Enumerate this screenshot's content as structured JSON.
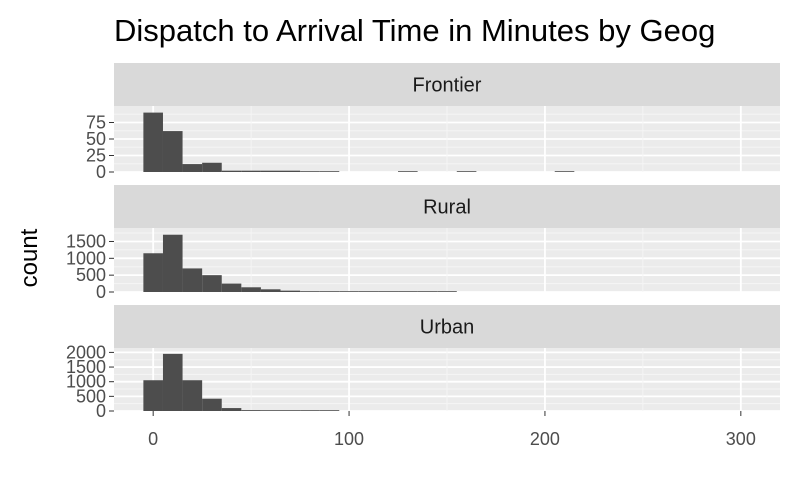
{
  "chart_data": {
    "type": "histogram",
    "title": "Dispatch to Arrival Time in Minutes by Geog",
    "xlabel": "",
    "ylabel": "count",
    "bin_width": 10,
    "x_range": [
      -20,
      320
    ],
    "x_ticks": [
      0,
      100,
      200,
      300
    ],
    "grid": true,
    "colors": {
      "bar": "#4d4d4d",
      "panel_bg": "#ebebeb",
      "strip_bg": "#d9d9d9",
      "grid_major": "#ffffff"
    },
    "panels": [
      {
        "name": "Frontier",
        "ylim": [
          0,
          100
        ],
        "y_ticks": [
          0,
          25,
          50,
          75
        ],
        "bins": [
          {
            "x": 0,
            "count": 90
          },
          {
            "x": 10,
            "count": 62
          },
          {
            "x": 20,
            "count": 12
          },
          {
            "x": 30,
            "count": 14
          },
          {
            "x": 40,
            "count": 2
          },
          {
            "x": 50,
            "count": 2
          },
          {
            "x": 60,
            "count": 2
          },
          {
            "x": 70,
            "count": 2
          },
          {
            "x": 80,
            "count": 1
          },
          {
            "x": 90,
            "count": 1
          },
          {
            "x": 130,
            "count": 1
          },
          {
            "x": 160,
            "count": 1
          },
          {
            "x": 210,
            "count": 1
          }
        ]
      },
      {
        "name": "Rural",
        "ylim": [
          0,
          1900
        ],
        "y_ticks": [
          0,
          500,
          1000,
          1500
        ],
        "bins": [
          {
            "x": 0,
            "count": 1150
          },
          {
            "x": 10,
            "count": 1700
          },
          {
            "x": 20,
            "count": 700
          },
          {
            "x": 30,
            "count": 500
          },
          {
            "x": 40,
            "count": 250
          },
          {
            "x": 50,
            "count": 140
          },
          {
            "x": 60,
            "count": 80
          },
          {
            "x": 70,
            "count": 40
          },
          {
            "x": 80,
            "count": 20
          },
          {
            "x": 90,
            "count": 15
          },
          {
            "x": 100,
            "count": 10
          },
          {
            "x": 110,
            "count": 8
          },
          {
            "x": 120,
            "count": 6
          },
          {
            "x": 130,
            "count": 5
          },
          {
            "x": 140,
            "count": 4
          },
          {
            "x": 150,
            "count": 3
          }
        ]
      },
      {
        "name": "Urban",
        "ylim": [
          0,
          2150
        ],
        "y_ticks": [
          0,
          500,
          1000,
          1500,
          2000
        ],
        "bins": [
          {
            "x": 0,
            "count": 1050
          },
          {
            "x": 10,
            "count": 1950
          },
          {
            "x": 20,
            "count": 1050
          },
          {
            "x": 30,
            "count": 420
          },
          {
            "x": 40,
            "count": 100
          },
          {
            "x": 50,
            "count": 30
          },
          {
            "x": 60,
            "count": 15
          },
          {
            "x": 70,
            "count": 8
          },
          {
            "x": 80,
            "count": 5
          },
          {
            "x": 90,
            "count": 4
          }
        ]
      }
    ]
  }
}
